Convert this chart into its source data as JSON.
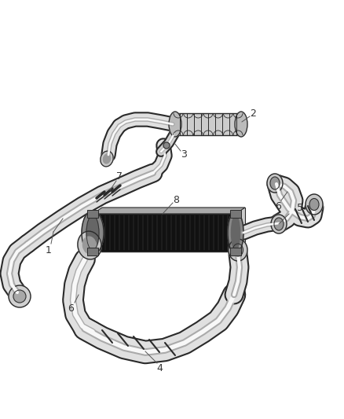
{
  "bg_color": "#ffffff",
  "line_color": "#2a2a2a",
  "label_color": "#333333",
  "fig_width": 4.38,
  "fig_height": 5.33,
  "dpi": 100,
  "hose_fill": "#f0f0f0",
  "hose_shadow": "#c8c8c8",
  "ic_dark": "#1a1a1a",
  "ic_fill": "#e8e8e8"
}
